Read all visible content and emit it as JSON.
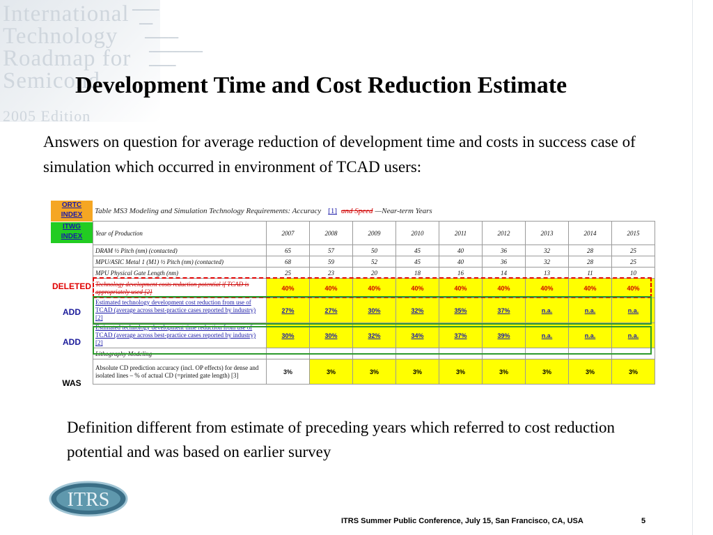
{
  "background": {
    "watermark_words": [
      "International",
      "Technology",
      "Roadmap for",
      "Semicond",
      "2005 Edition"
    ]
  },
  "slide": {
    "title": "Development Time and Cost Reduction Estimate",
    "intro": "Answers on question for average reduction of development time and costs in success case of simulation which occurred in environment of TCAD users:",
    "note": "Definition different from estimate of preceding years which referred to cost reduction potential and was based on earlier survey"
  },
  "tags": {
    "ortc_line1": "ORTC",
    "ortc_line2": "INDEX",
    "itwg_line1": "ITWG",
    "itwg_line2": "INDEX",
    "deleted": "DELETED",
    "add1": "ADD",
    "add2": "ADD",
    "was": "WAS"
  },
  "table": {
    "caption": "Table MS3    Modeling and Simulation Technology Requirements: Accuracy",
    "caption_ref": "[1]",
    "caption_deleted": "and Speed",
    "caption_suffix": "—Near-term Years",
    "header_label": "Year of Production",
    "years": [
      "2007",
      "2008",
      "2009",
      "2010",
      "2011",
      "2012",
      "2013",
      "2014",
      "2015"
    ],
    "rows": [
      {
        "label": "DRAM ½ Pitch (nm) (contacted)",
        "values": [
          "65",
          "57",
          "50",
          "45",
          "40",
          "36",
          "32",
          "28",
          "25"
        ]
      },
      {
        "label": "MPU/ASIC Metal 1 (M1) ½ Pitch (nm) (contacted)",
        "values": [
          "68",
          "59",
          "52",
          "45",
          "40",
          "36",
          "32",
          "28",
          "25"
        ]
      },
      {
        "label": "MPU Physical Gate Length (nm)",
        "values": [
          "25",
          "23",
          "20",
          "18",
          "16",
          "14",
          "13",
          "11",
          "10"
        ]
      }
    ],
    "deleted_row": {
      "label": "Technology development costs reduction potential if TCAD is appropriately used [2]",
      "values": [
        "40%",
        "40%",
        "40%",
        "40%",
        "40%",
        "40%",
        "40%",
        "40%",
        "40%"
      ]
    },
    "add_rows": [
      {
        "label": "Estimated technology development cost reduction from use of TCAD (average across best-practice cases reported by industry) [2]",
        "values": [
          "27%",
          "27%",
          "30%",
          "32%",
          "35%",
          "37%",
          "n.a.",
          "n.a.",
          "n.a."
        ]
      },
      {
        "label": "Estimated technology development time reduction from use of TCAD (average across best-practice cases reported by industry) [2]",
        "values": [
          "30%",
          "30%",
          "32%",
          "34%",
          "37%",
          "39%",
          "n.a.",
          "n.a.",
          "n.a."
        ]
      }
    ],
    "section_label": "Lithography Modeling",
    "was_row": {
      "label": "Absolute CD prediction accuracy (incl. OP effects) for dense and isolated lines – % of actual CD (=printed gate length) [3]",
      "values": [
        "3%",
        "3%",
        "3%",
        "3%",
        "3%",
        "3%",
        "3%",
        "3%",
        "3%"
      ]
    }
  },
  "footer": {
    "logo_text": "ITRS",
    "text": "ITRS Summer Public Conference, July 15, San Francisco, CA, USA",
    "page": "5"
  },
  "colors": {
    "highlight_yellow": "#ffff00",
    "ortc_orange": "#f5a623",
    "itwg_green": "#22cc22",
    "deleted_red": "#e00000",
    "add_green": "#2c9a2c",
    "link_blue": "#1a1aa8"
  }
}
